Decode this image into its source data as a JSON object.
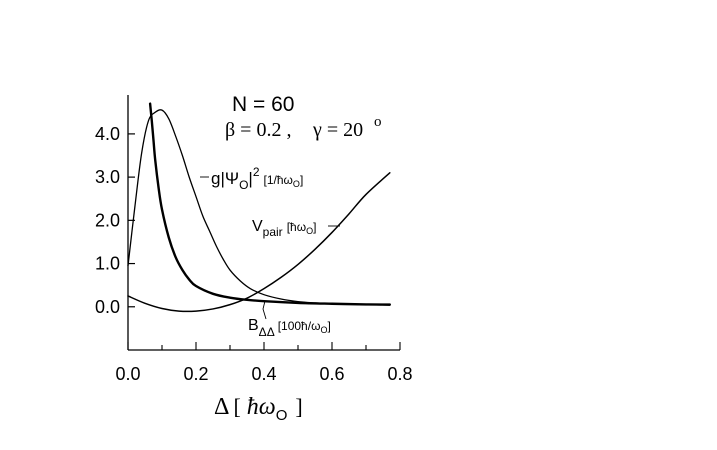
{
  "chart_data": {
    "type": "line",
    "title": "N = 60",
    "subtitle": "β=0.2 ,  γ=20°",
    "xlabel": "Δ [ ħω₀ ]",
    "ylabel": "",
    "xlim": [
      0.0,
      0.8
    ],
    "ylim": [
      -1.0,
      4.9
    ],
    "xticks": [
      0.0,
      0.2,
      0.4,
      0.6,
      0.8
    ],
    "xtick_labels": [
      "0.0",
      "0.2",
      "0.4",
      "0.6",
      "0.8"
    ],
    "yticks": [
      0.0,
      1.0,
      2.0,
      3.0,
      4.0
    ],
    "ytick_labels": [
      "0.0",
      "1.0",
      "2.0",
      "3.0",
      "4.0"
    ],
    "grid": false,
    "series": [
      {
        "name": "g|Ψ₀|² [1/ħω₀]",
        "stroke": "#000000",
        "width": 1.3,
        "x": [
          0.0,
          0.02,
          0.04,
          0.06,
          0.08,
          0.1,
          0.12,
          0.14,
          0.16,
          0.18,
          0.2,
          0.22,
          0.24,
          0.26,
          0.28,
          0.3,
          0.33,
          0.36,
          0.4,
          0.45,
          0.5,
          0.55,
          0.6,
          0.65,
          0.7,
          0.77
        ],
        "values": [
          0.95,
          2.3,
          3.55,
          4.3,
          4.5,
          4.55,
          4.35,
          3.95,
          3.5,
          3.0,
          2.55,
          2.1,
          1.75,
          1.4,
          1.1,
          0.85,
          0.6,
          0.42,
          0.28,
          0.18,
          0.12,
          0.09,
          0.07,
          0.06,
          0.05,
          0.04
        ]
      },
      {
        "name": "V_pair [ħω₀]",
        "stroke": "#000000",
        "width": 1.5,
        "x": [
          0.0,
          0.05,
          0.1,
          0.15,
          0.2,
          0.25,
          0.3,
          0.35,
          0.4,
          0.45,
          0.5,
          0.55,
          0.6,
          0.65,
          0.7,
          0.77
        ],
        "values": [
          0.25,
          0.08,
          -0.04,
          -0.1,
          -0.1,
          -0.05,
          0.05,
          0.2,
          0.42,
          0.68,
          0.98,
          1.33,
          1.72,
          2.15,
          2.6,
          3.1
        ]
      },
      {
        "name": "B_ΔΔ [100ħ/ω₀]",
        "stroke": "#000000",
        "width": 2.4,
        "x": [
          0.065,
          0.07,
          0.075,
          0.08,
          0.09,
          0.1,
          0.12,
          0.14,
          0.16,
          0.18,
          0.2,
          0.25,
          0.3,
          0.35,
          0.4,
          0.5,
          0.6,
          0.7,
          0.77
        ],
        "values": [
          4.7,
          4.3,
          3.85,
          3.4,
          2.75,
          2.25,
          1.6,
          1.15,
          0.85,
          0.63,
          0.48,
          0.3,
          0.21,
          0.16,
          0.13,
          0.09,
          0.07,
          0.055,
          0.05
        ]
      }
    ],
    "annotations": {
      "psi_label": {
        "main": "g|Ψ",
        "sub": "O",
        "tail": "|",
        "sup": "2",
        "unit": "[1/ħω",
        "unit_sub": "O",
        "unit_end": "]"
      },
      "v_label": {
        "main": "V",
        "sub": "pair",
        "unit": "[ħω",
        "unit_sub": "O",
        "unit_end": "]"
      },
      "b_label": {
        "main": "B",
        "sub": "ΔΔ",
        "unit": "[100ħ/ω",
        "unit_sub": "O",
        "unit_end": "]"
      },
      "title_label": "N = 60",
      "params_beta": "β = 0.2 ,",
      "params_gamma": "γ = 20",
      "params_gamma_sup": "o",
      "xaxis_delta": "Δ",
      "xaxis_open": "[",
      "xaxis_hbar": "ħω",
      "xaxis_sub": "O",
      "xaxis_close": "]"
    }
  }
}
